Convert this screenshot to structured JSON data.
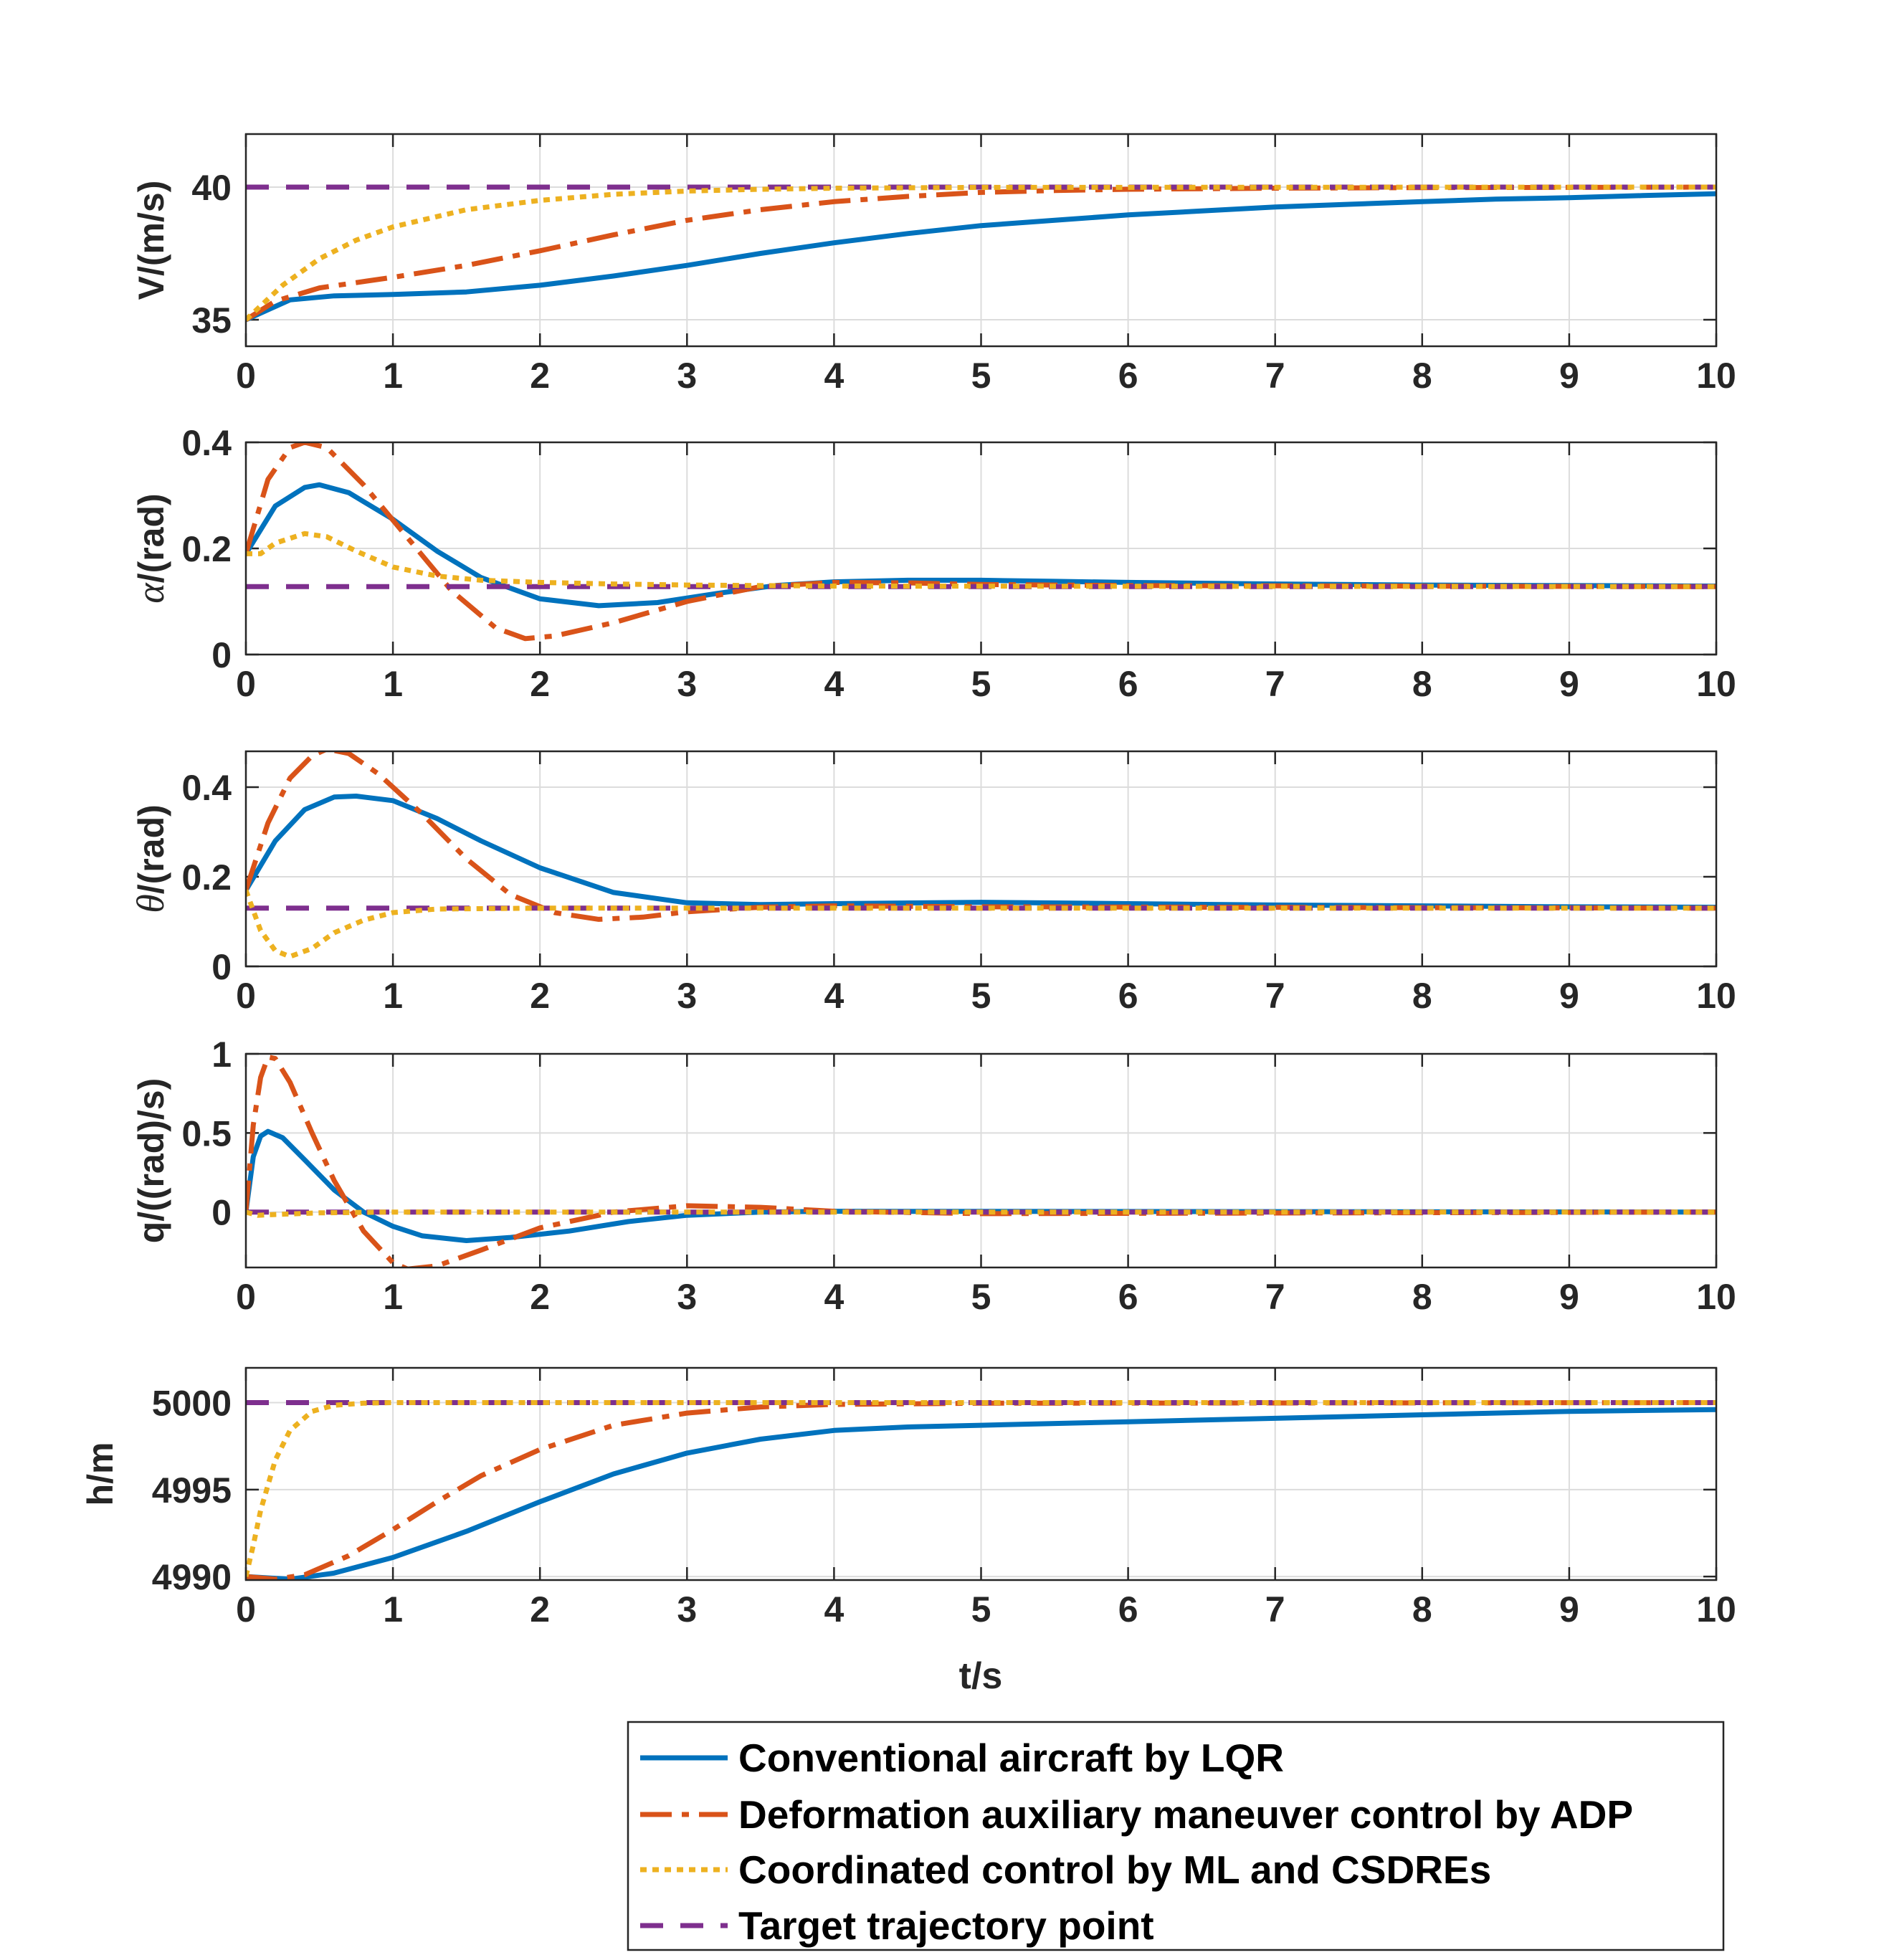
{
  "chart_data": {
    "type": "line",
    "xlabel": "t/s",
    "xlim": [
      0,
      10
    ],
    "xticks": [
      "0",
      "1",
      "2",
      "3",
      "4",
      "5",
      "6",
      "7",
      "8",
      "9",
      "10"
    ],
    "colors": {
      "lqr": "#0072BD",
      "adp": "#D95319",
      "ml": "#EDB120",
      "target": "#7E2F8E"
    },
    "legend": {
      "position": "bottom-right",
      "entries": [
        {
          "key": "lqr",
          "label": "Conventional aircraft by LQR"
        },
        {
          "key": "adp",
          "label": "Deformation auxiliary maneuver control by ADP"
        },
        {
          "key": "ml",
          "label": "Coordinated control by ML and CSDREs"
        },
        {
          "key": "target",
          "label": "Target trajectory point"
        }
      ]
    },
    "subplots": [
      {
        "id": "V",
        "ylabel_main": "V",
        "ylabel_unit": "/(m/s)",
        "ylim": [
          34,
          42
        ],
        "yticks": [
          35,
          40
        ],
        "ytick_labels": [
          "35",
          "40"
        ],
        "target": 40,
        "series": {
          "lqr": [
            [
              0,
              35
            ],
            [
              0.3,
              35.75
            ],
            [
              0.6,
              35.9
            ],
            [
              1,
              35.95
            ],
            [
              1.5,
              36.05
            ],
            [
              2,
              36.3
            ],
            [
              2.5,
              36.65
            ],
            [
              3,
              37.05
            ],
            [
              3.5,
              37.5
            ],
            [
              4,
              37.9
            ],
            [
              4.5,
              38.25
            ],
            [
              5,
              38.55
            ],
            [
              5.5,
              38.75
            ],
            [
              6,
              38.95
            ],
            [
              6.5,
              39.1
            ],
            [
              7,
              39.25
            ],
            [
              7.5,
              39.35
            ],
            [
              8,
              39.45
            ],
            [
              8.5,
              39.55
            ],
            [
              9,
              39.6
            ],
            [
              9.5,
              39.68
            ],
            [
              10,
              39.75
            ]
          ],
          "adp": [
            [
              0,
              35
            ],
            [
              0.2,
              35.7
            ],
            [
              0.5,
              36.2
            ],
            [
              1,
              36.6
            ],
            [
              1.5,
              37.05
            ],
            [
              2,
              37.6
            ],
            [
              2.5,
              38.2
            ],
            [
              3,
              38.75
            ],
            [
              3.5,
              39.15
            ],
            [
              4,
              39.45
            ],
            [
              4.5,
              39.65
            ],
            [
              5,
              39.8
            ],
            [
              5.5,
              39.87
            ],
            [
              6,
              39.92
            ],
            [
              7,
              39.96
            ],
            [
              8,
              39.98
            ],
            [
              10,
              40
            ]
          ],
          "ml": [
            [
              0,
              35
            ],
            [
              0.25,
              36.3
            ],
            [
              0.5,
              37.3
            ],
            [
              0.75,
              38.0
            ],
            [
              1,
              38.5
            ],
            [
              1.5,
              39.15
            ],
            [
              2,
              39.5
            ],
            [
              2.5,
              39.73
            ],
            [
              3,
              39.85
            ],
            [
              3.5,
              39.92
            ],
            [
              4,
              39.96
            ],
            [
              5,
              39.99
            ],
            [
              10,
              40
            ]
          ]
        }
      },
      {
        "id": "alpha",
        "ylabel_main": "α",
        "ylabel_unit": "/(rad)",
        "ylim": [
          0,
          0.4
        ],
        "yticks": [
          0,
          0.2,
          0.4
        ],
        "ytick_labels": [
          "0",
          "0.2",
          "0.4"
        ],
        "target": 0.128,
        "series": {
          "lqr": [
            [
              0,
              0.19
            ],
            [
              0.2,
              0.28
            ],
            [
              0.4,
              0.315
            ],
            [
              0.5,
              0.32
            ],
            [
              0.7,
              0.305
            ],
            [
              1,
              0.255
            ],
            [
              1.3,
              0.195
            ],
            [
              1.6,
              0.145
            ],
            [
              2,
              0.105
            ],
            [
              2.4,
              0.092
            ],
            [
              2.8,
              0.098
            ],
            [
              3.2,
              0.115
            ],
            [
              3.6,
              0.13
            ],
            [
              4,
              0.137
            ],
            [
              4.5,
              0.14
            ],
            [
              5,
              0.14
            ],
            [
              5.5,
              0.138
            ],
            [
              6,
              0.136
            ],
            [
              7,
              0.133
            ],
            [
              8,
              0.131
            ],
            [
              9,
              0.13
            ],
            [
              10,
              0.129
            ]
          ],
          "adp": [
            [
              0,
              0.19
            ],
            [
              0.15,
              0.33
            ],
            [
              0.3,
              0.39
            ],
            [
              0.4,
              0.4
            ],
            [
              0.55,
              0.39
            ],
            [
              0.8,
              0.32
            ],
            [
              1.1,
              0.22
            ],
            [
              1.4,
              0.12
            ],
            [
              1.7,
              0.05
            ],
            [
              1.9,
              0.03
            ],
            [
              2.1,
              0.035
            ],
            [
              2.5,
              0.06
            ],
            [
              3,
              0.1
            ],
            [
              3.5,
              0.128
            ],
            [
              4,
              0.136
            ],
            [
              4.5,
              0.135
            ],
            [
              5,
              0.132
            ],
            [
              6,
              0.13
            ],
            [
              10,
              0.128
            ]
          ],
          "ml": [
            [
              0,
              0.19
            ],
            [
              0.1,
              0.19
            ],
            [
              0.2,
              0.21
            ],
            [
              0.4,
              0.228
            ],
            [
              0.55,
              0.222
            ],
            [
              0.75,
              0.195
            ],
            [
              1,
              0.165
            ],
            [
              1.3,
              0.148
            ],
            [
              1.6,
              0.14
            ],
            [
              2,
              0.136
            ],
            [
              2.5,
              0.133
            ],
            [
              3,
              0.131
            ],
            [
              4,
              0.129
            ],
            [
              10,
              0.128
            ]
          ]
        }
      },
      {
        "id": "theta",
        "ylabel_main": "θ",
        "ylabel_unit": "/(rad)",
        "ylim": [
          0,
          0.48
        ],
        "yticks": [
          0,
          0.2,
          0.4
        ],
        "ytick_labels": [
          "0",
          "0.2",
          "0.4"
        ],
        "target": 0.13,
        "series": {
          "lqr": [
            [
              0,
              0.17
            ],
            [
              0.2,
              0.28
            ],
            [
              0.4,
              0.35
            ],
            [
              0.6,
              0.378
            ],
            [
              0.75,
              0.38
            ],
            [
              1,
              0.37
            ],
            [
              1.3,
              0.33
            ],
            [
              1.6,
              0.28
            ],
            [
              2,
              0.22
            ],
            [
              2.5,
              0.165
            ],
            [
              3,
              0.142
            ],
            [
              3.5,
              0.138
            ],
            [
              4,
              0.14
            ],
            [
              5,
              0.143
            ],
            [
              6,
              0.14
            ],
            [
              7,
              0.137
            ],
            [
              8,
              0.135
            ],
            [
              9,
              0.133
            ],
            [
              10,
              0.132
            ]
          ],
          "adp": [
            [
              0,
              0.17
            ],
            [
              0.15,
              0.32
            ],
            [
              0.3,
              0.42
            ],
            [
              0.45,
              0.47
            ],
            [
              0.55,
              0.485
            ],
            [
              0.7,
              0.475
            ],
            [
              0.9,
              0.43
            ],
            [
              1.2,
              0.34
            ],
            [
              1.5,
              0.24
            ],
            [
              1.8,
              0.16
            ],
            [
              2.1,
              0.12
            ],
            [
              2.4,
              0.105
            ],
            [
              2.7,
              0.11
            ],
            [
              3,
              0.122
            ],
            [
              3.5,
              0.132
            ],
            [
              4,
              0.135
            ],
            [
              5,
              0.133
            ],
            [
              10,
              0.13
            ]
          ],
          "ml": [
            [
              0,
              0.17
            ],
            [
              0.1,
              0.08
            ],
            [
              0.2,
              0.035
            ],
            [
              0.3,
              0.022
            ],
            [
              0.45,
              0.04
            ],
            [
              0.6,
              0.075
            ],
            [
              0.8,
              0.103
            ],
            [
              1,
              0.12
            ],
            [
              1.3,
              0.128
            ],
            [
              2,
              0.13
            ],
            [
              10,
              0.13
            ]
          ]
        }
      },
      {
        "id": "q",
        "ylabel_main": "q",
        "ylabel_unit": "/((rad)/s)",
        "ylim": [
          -0.35,
          1
        ],
        "yticks": [
          0,
          0.5,
          1
        ],
        "ytick_labels": [
          "0",
          "0.5",
          "1"
        ],
        "target": 0,
        "series": {
          "lqr": [
            [
              0,
              0
            ],
            [
              0.05,
              0.35
            ],
            [
              0.1,
              0.48
            ],
            [
              0.15,
              0.51
            ],
            [
              0.25,
              0.47
            ],
            [
              0.4,
              0.33
            ],
            [
              0.6,
              0.14
            ],
            [
              0.8,
              0.0
            ],
            [
              1,
              -0.09
            ],
            [
              1.2,
              -0.15
            ],
            [
              1.5,
              -0.18
            ],
            [
              1.8,
              -0.16
            ],
            [
              2.2,
              -0.12
            ],
            [
              2.6,
              -0.06
            ],
            [
              3,
              -0.02
            ],
            [
              3.5,
              0.0
            ],
            [
              4,
              0.005
            ],
            [
              10,
              0
            ]
          ],
          "adp": [
            [
              0,
              0
            ],
            [
              0.05,
              0.55
            ],
            [
              0.1,
              0.85
            ],
            [
              0.15,
              0.98
            ],
            [
              0.2,
              0.97
            ],
            [
              0.3,
              0.82
            ],
            [
              0.45,
              0.5
            ],
            [
              0.6,
              0.2
            ],
            [
              0.8,
              -0.12
            ],
            [
              1,
              -0.32
            ],
            [
              1.1,
              -0.36
            ],
            [
              1.3,
              -0.34
            ],
            [
              1.6,
              -0.24
            ],
            [
              2,
              -0.1
            ],
            [
              2.5,
              0.0
            ],
            [
              3,
              0.04
            ],
            [
              3.5,
              0.03
            ],
            [
              4,
              0.005
            ],
            [
              5,
              -0.01
            ],
            [
              10,
              0
            ]
          ],
          "ml": [
            [
              0,
              0
            ],
            [
              0.08,
              -0.02
            ],
            [
              0.2,
              -0.015
            ],
            [
              0.5,
              -0.005
            ],
            [
              1,
              0
            ],
            [
              10,
              0
            ]
          ]
        }
      },
      {
        "id": "h",
        "ylabel_main": "h",
        "ylabel_unit": "/m",
        "ylim": [
          4989.8,
          5002
        ],
        "yticks": [
          4990,
          4995,
          5000
        ],
        "ytick_labels": [
          "4990",
          "4995",
          "5000"
        ],
        "target": 5000,
        "series": {
          "lqr": [
            [
              0,
              4990
            ],
            [
              0.3,
              4989.85
            ],
            [
              0.6,
              4990.2
            ],
            [
              1,
              4991.1
            ],
            [
              1.5,
              4992.6
            ],
            [
              2,
              4994.3
            ],
            [
              2.5,
              4995.9
            ],
            [
              3,
              4997.1
            ],
            [
              3.5,
              4997.9
            ],
            [
              4,
              4998.4
            ],
            [
              4.5,
              4998.6
            ],
            [
              5,
              4998.7
            ],
            [
              6,
              4998.9
            ],
            [
              7,
              4999.1
            ],
            [
              8,
              4999.3
            ],
            [
              9,
              4999.5
            ],
            [
              10,
              4999.6
            ]
          ],
          "adp": [
            [
              0,
              4990
            ],
            [
              0.2,
              4989.85
            ],
            [
              0.4,
              4990.1
            ],
            [
              0.7,
              4991.2
            ],
            [
              1,
              4992.7
            ],
            [
              1.3,
              4994.3
            ],
            [
              1.6,
              4995.8
            ],
            [
              2,
              4997.3
            ],
            [
              2.5,
              4998.7
            ],
            [
              3,
              4999.4
            ],
            [
              3.5,
              4999.75
            ],
            [
              4,
              4999.9
            ],
            [
              5,
              4999.97
            ],
            [
              10,
              5000
            ]
          ],
          "ml": [
            [
              0,
              4990
            ],
            [
              0.05,
              4991.8
            ],
            [
              0.1,
              4993.8
            ],
            [
              0.2,
              4996.7
            ],
            [
              0.3,
              4998.4
            ],
            [
              0.45,
              4999.5
            ],
            [
              0.6,
              4999.85
            ],
            [
              0.8,
              4999.97
            ],
            [
              1,
              5000
            ],
            [
              10,
              5000
            ]
          ]
        }
      }
    ]
  }
}
